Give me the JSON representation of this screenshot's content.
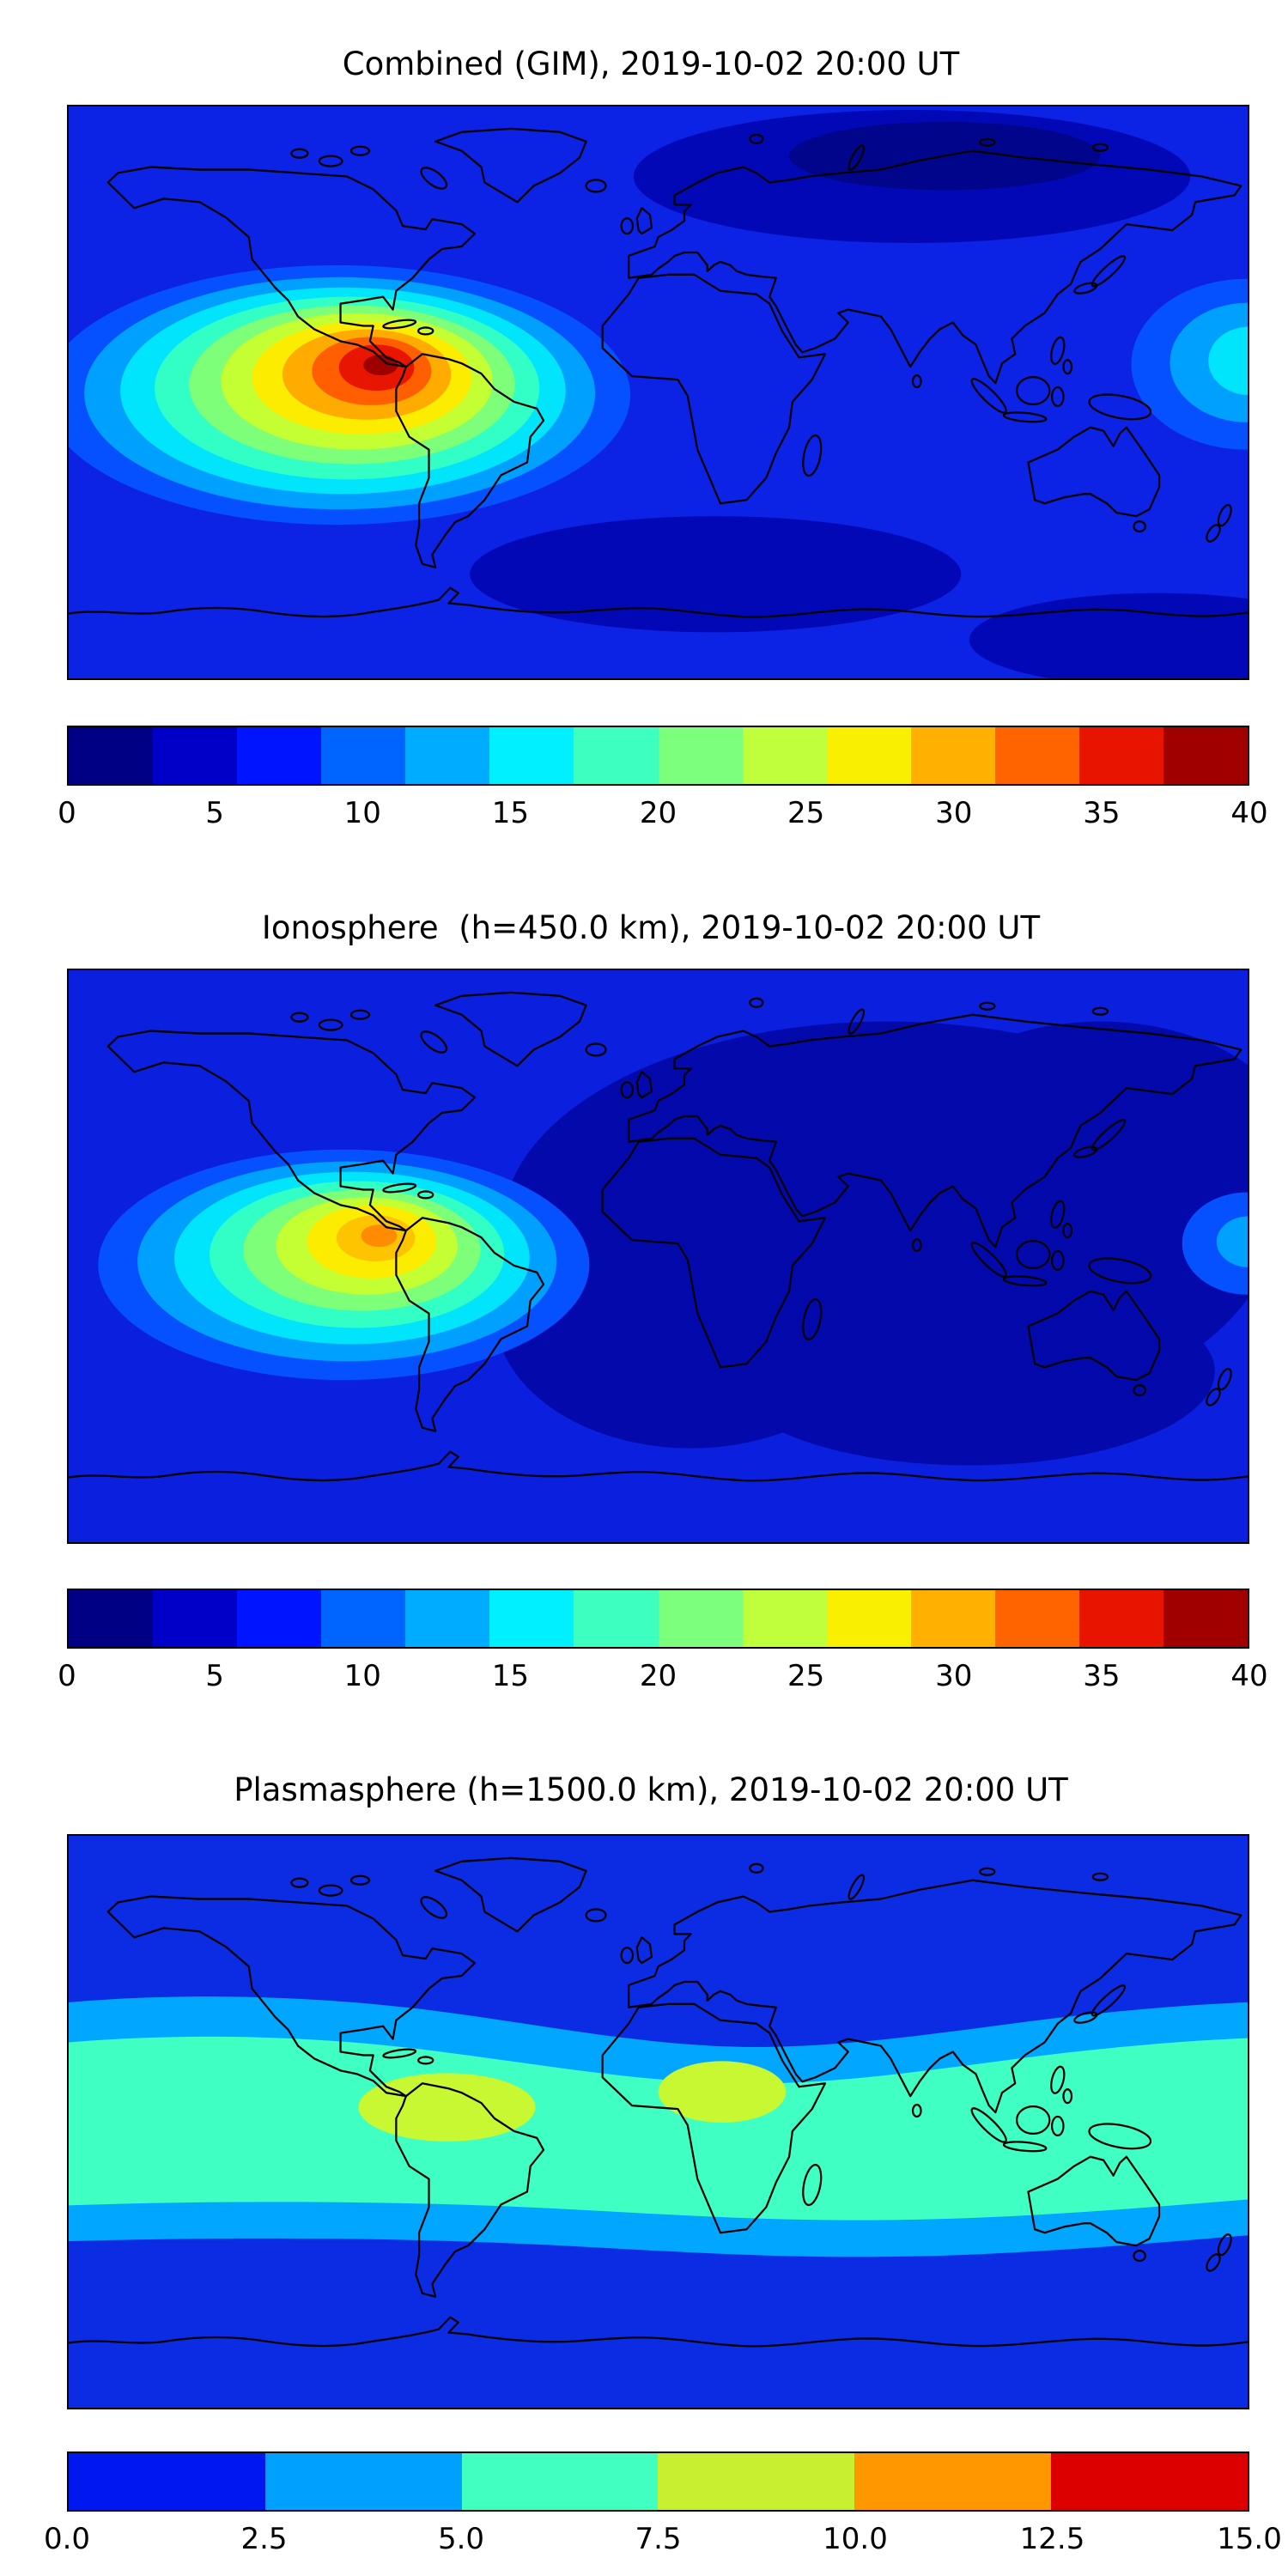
{
  "figure": {
    "panels": [
      {
        "title": "Combined (GIM), 2019-10-02 20:00 UT",
        "colorbar": {
          "min": 0,
          "max": 40,
          "ticks": [
            "0",
            "5",
            "10",
            "15",
            "20",
            "25",
            "30",
            "35",
            "40"
          ],
          "colors": [
            "#000084",
            "#0000c8",
            "#0014ff",
            "#0064ff",
            "#00acff",
            "#00f0ff",
            "#3cffc0",
            "#7cff7c",
            "#c0ff3c",
            "#f8f000",
            "#ffb000",
            "#ff6400",
            "#e81400",
            "#a00000"
          ]
        }
      },
      {
        "title": "Ionosphere  (h=450.0 km), 2019-10-02 20:00 UT",
        "colorbar": {
          "min": 0,
          "max": 40,
          "ticks": [
            "0",
            "5",
            "10",
            "15",
            "20",
            "25",
            "30",
            "35",
            "40"
          ],
          "colors": [
            "#000084",
            "#0000c8",
            "#0014ff",
            "#0064ff",
            "#00acff",
            "#00f0ff",
            "#3cffc0",
            "#7cff7c",
            "#c0ff3c",
            "#f8f000",
            "#ffb000",
            "#ff6400",
            "#e81400",
            "#a00000"
          ]
        }
      },
      {
        "title": "Plasmasphere (h=1500.0 km), 2019-10-02 20:00 UT",
        "colorbar": {
          "min": 0,
          "max": 15,
          "ticks": [
            "0.0",
            "2.5",
            "5.0",
            "7.5",
            "10.0",
            "12.5",
            "15.0"
          ],
          "colors": [
            "#0018f0",
            "#00a0ff",
            "#40ffc0",
            "#c8f030",
            "#ff9800",
            "#dc0000"
          ]
        }
      }
    ]
  },
  "chart_data": [
    {
      "type": "heatmap",
      "title": "Combined (GIM), 2019-10-02 20:00 UT",
      "projection": "equirectangular world map with coastlines",
      "colormap": "jet",
      "value_range": [
        0,
        40
      ],
      "colorbar_ticks": [
        0,
        5,
        10,
        15,
        20,
        25,
        30,
        35,
        40
      ],
      "lon_deg": [
        -180,
        -150,
        -120,
        -90,
        -60,
        -30,
        0,
        30,
        60,
        90,
        120,
        150,
        180
      ],
      "lat_deg": [
        90,
        60,
        30,
        0,
        -30,
        -60,
        -90
      ],
      "values": [
        [
          4,
          4,
          4,
          4,
          3,
          3,
          2,
          2,
          3,
          3,
          4,
          4,
          4
        ],
        [
          6,
          6,
          6,
          6,
          5,
          4,
          2,
          2,
          2,
          3,
          5,
          6,
          6
        ],
        [
          9,
          8,
          10,
          13,
          10,
          6,
          5,
          4,
          5,
          6,
          7,
          8,
          9
        ],
        [
          13,
          14,
          25,
          38,
          22,
          11,
          8,
          7,
          8,
          9,
          10,
          13,
          15
        ],
        [
          7,
          8,
          11,
          17,
          13,
          8,
          5,
          4,
          4,
          5,
          7,
          8,
          7
        ],
        [
          5,
          5,
          6,
          7,
          6,
          4,
          3,
          2,
          3,
          3,
          4,
          5,
          5
        ],
        [
          4,
          4,
          4,
          4,
          4,
          3,
          3,
          3,
          3,
          3,
          4,
          4,
          4
        ]
      ],
      "max_region": {
        "lon": -85,
        "lat": 5,
        "value": 40
      },
      "notes": "Strong equatorial anomaly hotspot over the eastern Pacific / northern South America; dark low-value regions over northern Asia and the far southern Atlantic/Indian Ocean; secondary cyan enhancement at the eastern map edge near the equator."
    },
    {
      "type": "heatmap",
      "title": "Ionosphere  (h=450.0 km), 2019-10-02 20:00 UT",
      "projection": "equirectangular world map with coastlines",
      "colormap": "jet",
      "value_range": [
        0,
        40
      ],
      "colorbar_ticks": [
        0,
        5,
        10,
        15,
        20,
        25,
        30,
        35,
        40
      ],
      "lon_deg": [
        -180,
        -150,
        -120,
        -90,
        -60,
        -30,
        0,
        30,
        60,
        90,
        120,
        150,
        180
      ],
      "lat_deg": [
        90,
        60,
        30,
        0,
        -30,
        -60,
        -90
      ],
      "values": [
        [
          3,
          3,
          3,
          3,
          2,
          2,
          2,
          2,
          2,
          2,
          3,
          3,
          3
        ],
        [
          4,
          4,
          5,
          5,
          4,
          3,
          2,
          2,
          2,
          2,
          3,
          4,
          4
        ],
        [
          6,
          6,
          8,
          10,
          7,
          4,
          3,
          3,
          3,
          4,
          5,
          6,
          6
        ],
        [
          9,
          10,
          18,
          28,
          15,
          7,
          5,
          4,
          5,
          6,
          7,
          9,
          9
        ],
        [
          5,
          6,
          8,
          12,
          9,
          5,
          3,
          3,
          3,
          4,
          5,
          6,
          5
        ],
        [
          4,
          4,
          4,
          5,
          4,
          3,
          2,
          2,
          2,
          3,
          3,
          4,
          4
        ],
        [
          3,
          3,
          3,
          3,
          3,
          2,
          2,
          2,
          2,
          2,
          3,
          3,
          3
        ]
      ],
      "max_region": {
        "lon": -87,
        "lat": 4,
        "value": 29
      },
      "notes": "Same hotspot as combined map but weaker (orange core, no dark red); very large dark low-value region spanning Africa, the Indian Ocean and southern/eastern Asia."
    },
    {
      "type": "heatmap",
      "title": "Plasmasphere (h=1500.0 km), 2019-10-02 20:00 UT",
      "projection": "equirectangular world map with coastlines",
      "colormap": "jet",
      "value_range": [
        0,
        15
      ],
      "colorbar_ticks": [
        0,
        2.5,
        5,
        7.5,
        10,
        12.5,
        15
      ],
      "lon_deg": [
        -180,
        -150,
        -120,
        -90,
        -60,
        -30,
        0,
        30,
        60,
        90,
        120,
        150,
        180
      ],
      "lat_deg": [
        90,
        60,
        30,
        0,
        -30,
        -60,
        -90
      ],
      "values": [
        [
          2,
          2,
          2,
          2,
          2,
          2,
          2,
          2,
          2,
          2,
          2,
          2,
          2
        ],
        [
          3,
          3,
          3,
          3,
          3,
          3,
          3,
          3,
          3,
          3,
          3,
          3,
          3
        ],
        [
          4,
          4,
          4,
          5,
          5,
          5,
          5,
          5,
          4,
          4,
          4,
          4,
          4
        ],
        [
          6,
          6,
          7,
          9,
          8,
          7,
          9,
          7,
          6,
          6,
          6,
          6,
          6
        ],
        [
          5,
          5,
          6,
          6,
          5,
          5,
          5,
          5,
          5,
          4,
          4,
          5,
          5
        ],
        [
          3,
          3,
          3,
          3,
          3,
          3,
          3,
          3,
          3,
          3,
          3,
          3,
          3
        ],
        [
          2,
          2,
          2,
          2,
          2,
          2,
          2,
          2,
          2,
          2,
          2,
          2,
          2
        ]
      ],
      "max_region": {
        "lon": -65,
        "lat": 5,
        "value": 9
      },
      "notes": "Smooth equatorial aquamarine band (~5-7.5) across all longitudes between about ±30 latitude, with two yellow-green maxima (~8-10): one over northern South America and one over central Africa; uniform blue (~0-2.5) toward both poles."
    }
  ]
}
